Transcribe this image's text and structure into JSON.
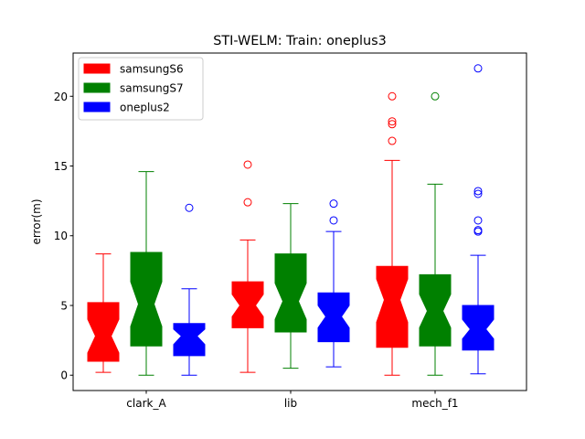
{
  "chart_data": {
    "type": "box",
    "title": "STI-WELM: Train: oneplus3",
    "ylabel": "error(m)",
    "xlabel": "",
    "categories": [
      "clark_A",
      "lib",
      "mech_f1"
    ],
    "ylim": [
      -1.1,
      23.1
    ],
    "yticks": [
      0,
      5,
      10,
      15,
      20
    ],
    "grid": false,
    "legend_position": "top-left",
    "notched": true,
    "series": [
      {
        "name": "samsungS6",
        "color": "#ff0000",
        "boxes": [
          {
            "category": "clark_A",
            "whisker_low": 0.2,
            "q1": 1.0,
            "median": 2.8,
            "q3": 5.2,
            "whisker_high": 8.7,
            "notch_low": 1.6,
            "notch_high": 4.0,
            "outliers": []
          },
          {
            "category": "lib",
            "whisker_low": 0.2,
            "q1": 3.4,
            "median": 5.0,
            "q3": 6.7,
            "whisker_high": 9.7,
            "notch_low": 4.2,
            "notch_high": 5.8,
            "outliers": [
              12.4,
              15.1
            ]
          },
          {
            "category": "mech_f1",
            "whisker_low": 0.0,
            "q1": 2.0,
            "median": 5.4,
            "q3": 7.8,
            "whisker_high": 15.4,
            "notch_low": 3.8,
            "notch_high": 6.9,
            "outliers": [
              16.8,
              18.0,
              18.2,
              20.0
            ]
          }
        ]
      },
      {
        "name": "samsungS7",
        "color": "#008000",
        "boxes": [
          {
            "category": "clark_A",
            "whisker_low": 0.0,
            "q1": 2.1,
            "median": 5.1,
            "q3": 8.8,
            "whisker_high": 14.6,
            "notch_low": 3.5,
            "notch_high": 6.7,
            "outliers": []
          },
          {
            "category": "lib",
            "whisker_low": 0.5,
            "q1": 3.1,
            "median": 5.3,
            "q3": 8.7,
            "whisker_high": 12.3,
            "notch_low": 4.0,
            "notch_high": 6.6,
            "outliers": []
          },
          {
            "category": "mech_f1",
            "whisker_low": 0.0,
            "q1": 2.1,
            "median": 4.6,
            "q3": 7.2,
            "whisker_high": 13.7,
            "notch_low": 3.4,
            "notch_high": 5.8,
            "outliers": [
              20.0
            ]
          }
        ]
      },
      {
        "name": "oneplus2",
        "color": "#0000ff",
        "boxes": [
          {
            "category": "clark_A",
            "whisker_low": 0.0,
            "q1": 1.4,
            "median": 2.8,
            "q3": 3.7,
            "whisker_high": 6.2,
            "notch_low": 2.2,
            "notch_high": 3.3,
            "outliers": [
              12.0
            ]
          },
          {
            "category": "lib",
            "whisker_low": 0.6,
            "q1": 2.4,
            "median": 4.2,
            "q3": 5.9,
            "whisker_high": 10.3,
            "notch_low": 3.4,
            "notch_high": 5.0,
            "outliers": [
              11.1,
              12.3
            ]
          },
          {
            "category": "mech_f1",
            "whisker_low": 0.1,
            "q1": 1.8,
            "median": 3.3,
            "q3": 5.0,
            "whisker_high": 8.6,
            "notch_low": 2.6,
            "notch_high": 4.0,
            "outliers": [
              10.3,
              10.4,
              11.1,
              13.0,
              13.2,
              22.0
            ]
          }
        ]
      }
    ]
  }
}
